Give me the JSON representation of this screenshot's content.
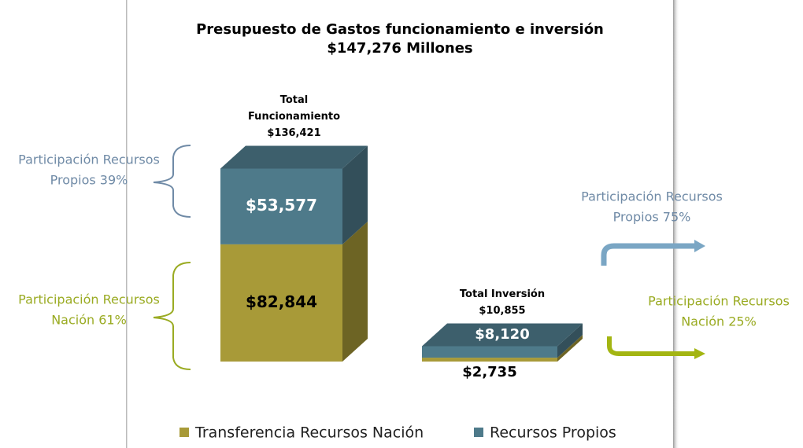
{
  "chart_data": {
    "type": "bar3d_stacked",
    "title": [
      "Presupuesto de Gastos funcionamiento e inversión",
      "$147,276 Millones"
    ],
    "categories": [
      [
        "Total",
        "Funcionamiento"
      ],
      [
        "Total Inversión"
      ]
    ],
    "totals": {
      "values": [
        136421,
        10855
      ],
      "value_labels": [
        "$136,421",
        "$10,855"
      ]
    },
    "series": [
      {
        "name": "Transferencia Recursos Nación",
        "color": "#a89a38",
        "values": [
          82844,
          2735
        ],
        "value_labels": [
          "$82,844",
          "$2,735"
        ]
      },
      {
        "name": "Recursos Propios",
        "color": "#4e7a8a",
        "values": [
          53577,
          8120
        ],
        "value_labels": [
          "$53,577",
          "$8,120"
        ]
      }
    ],
    "annotations": [
      {
        "lines": [
          "Participación Recursos",
          "Propios 39%"
        ],
        "color": "#6f8aa6"
      },
      {
        "lines": [
          "Participación Recursos",
          "Nación 61%"
        ],
        "color": "#9aab22"
      },
      {
        "lines": [
          "Participación Recursos",
          "Propios 75%"
        ],
        "color": "#6f8aa6"
      },
      {
        "lines": [
          "Participación Recursos",
          "Nación 25%"
        ],
        "color": "#9aab22"
      }
    ]
  }
}
